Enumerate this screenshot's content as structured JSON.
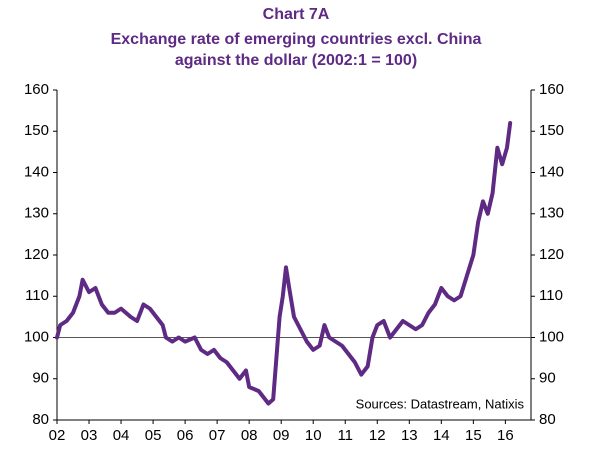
{
  "chart_data": {
    "type": "line",
    "title": "Chart 7A",
    "subtitle": [
      "Exchange rate of emerging countries excl. China",
      "against the dollar (2002:1 = 100)"
    ],
    "annotation": "Sources: Datastream, Natixis",
    "x": [
      2.0,
      2.1,
      2.3,
      2.5,
      2.7,
      2.8,
      3.0,
      3.2,
      3.4,
      3.6,
      3.8,
      4.0,
      4.3,
      4.5,
      4.7,
      4.9,
      5.1,
      5.3,
      5.4,
      5.6,
      5.8,
      6.0,
      6.3,
      6.5,
      6.7,
      6.9,
      7.1,
      7.3,
      7.5,
      7.7,
      7.9,
      8.0,
      8.3,
      8.5,
      8.6,
      8.75,
      8.85,
      8.95,
      9.05,
      9.15,
      9.25,
      9.4,
      9.6,
      9.8,
      10.0,
      10.2,
      10.35,
      10.5,
      10.7,
      10.9,
      11.1,
      11.3,
      11.5,
      11.7,
      11.85,
      12.0,
      12.2,
      12.4,
      12.6,
      12.8,
      13.0,
      13.2,
      13.4,
      13.6,
      13.8,
      14.0,
      14.2,
      14.4,
      14.6,
      14.8,
      15.0,
      15.15,
      15.3,
      15.45,
      15.6,
      15.75,
      15.9,
      16.05,
      16.15
    ],
    "series": [
      {
        "color": "#5e2a84",
        "values": [
          100,
          103,
          104,
          106,
          110,
          114,
          111,
          112,
          108,
          106,
          106,
          107,
          105,
          104,
          108,
          107,
          105,
          103,
          100,
          99,
          100,
          99,
          100,
          97,
          96,
          97,
          95,
          94,
          92,
          90,
          92,
          88,
          87,
          85,
          84,
          85,
          95,
          105,
          110,
          117,
          112,
          105,
          102,
          99,
          97,
          98,
          103,
          100,
          99,
          98,
          96,
          94,
          91,
          93,
          100,
          103,
          104,
          100,
          102,
          104,
          103,
          102,
          103,
          106,
          108,
          112,
          110,
          109,
          110,
          115,
          120,
          128,
          133,
          130,
          135,
          146,
          142,
          146,
          152
        ]
      }
    ],
    "xlim": [
      2,
      16.8
    ],
    "xticks": [
      {
        "value": 2,
        "label": "02"
      },
      {
        "value": 3,
        "label": "03"
      },
      {
        "value": 4,
        "label": "04"
      },
      {
        "value": 5,
        "label": "05"
      },
      {
        "value": 6,
        "label": "06"
      },
      {
        "value": 7,
        "label": "07"
      },
      {
        "value": 8,
        "label": "08"
      },
      {
        "value": 9,
        "label": "09"
      },
      10,
      11,
      12,
      13,
      14,
      15,
      16
    ],
    "ylim": [
      80,
      160
    ],
    "yticks": [
      80,
      90,
      100,
      110,
      120,
      130,
      140,
      150,
      160
    ],
    "y2lim": [
      80,
      160
    ],
    "y2ticks": [
      80,
      90,
      100,
      110,
      120,
      130,
      140,
      150,
      160
    ],
    "reference_line": 100
  }
}
